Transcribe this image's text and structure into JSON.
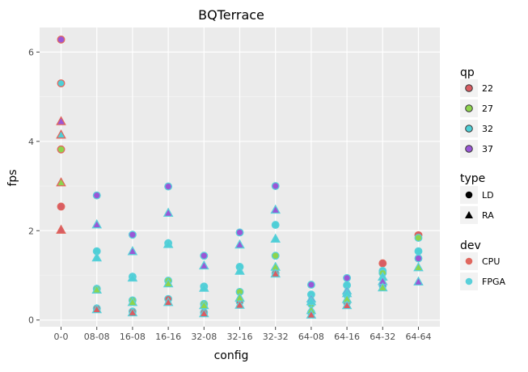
{
  "chart_data": {
    "type": "scatter",
    "title": "BQTerrace",
    "xlabel": "config",
    "ylabel": "fps",
    "categories": [
      "0-0",
      "08-08",
      "16-08",
      "16-16",
      "32-08",
      "32-16",
      "32-32",
      "64-08",
      "64-16",
      "64-32",
      "64-64"
    ],
    "ylim": [
      -0.15,
      6.55
    ],
    "yticks": [
      0,
      2,
      4,
      6
    ],
    "grid": true,
    "legend_position": "right",
    "legend": {
      "qp": {
        "title": "qp",
        "items": [
          {
            "label": "22",
            "color": "#d95d63"
          },
          {
            "label": "27",
            "color": "#8ed44d"
          },
          {
            "label": "32",
            "color": "#4ecfd6"
          },
          {
            "label": "37",
            "color": "#9a57d6"
          }
        ]
      },
      "type": {
        "title": "type",
        "items": [
          {
            "label": "LD",
            "shape": "circle"
          },
          {
            "label": "RA",
            "shape": "triangle"
          }
        ]
      },
      "dev": {
        "title": "dev",
        "items": [
          {
            "label": "CPU",
            "color": "#e0675e"
          },
          {
            "label": "FPGA",
            "color": "#5ad0da"
          }
        ]
      }
    },
    "points": [
      {
        "x": "0-0",
        "y": 6.28,
        "qp": "37",
        "type": "LD",
        "dev": "CPU"
      },
      {
        "x": "0-0",
        "y": 5.3,
        "qp": "32",
        "type": "LD",
        "dev": "CPU"
      },
      {
        "x": "0-0",
        "y": 3.82,
        "qp": "27",
        "type": "LD",
        "dev": "CPU"
      },
      {
        "x": "0-0",
        "y": 2.54,
        "qp": "22",
        "type": "LD",
        "dev": "CPU"
      },
      {
        "x": "0-0",
        "y": 4.45,
        "qp": "37",
        "type": "RA",
        "dev": "CPU"
      },
      {
        "x": "0-0",
        "y": 4.15,
        "qp": "32",
        "type": "RA",
        "dev": "CPU"
      },
      {
        "x": "0-0",
        "y": 3.08,
        "qp": "27",
        "type": "RA",
        "dev": "CPU"
      },
      {
        "x": "0-0",
        "y": 2.02,
        "qp": "22",
        "type": "RA",
        "dev": "CPU"
      },
      {
        "x": "08-08",
        "y": 2.79,
        "qp": "37",
        "type": "LD",
        "dev": "FPGA"
      },
      {
        "x": "08-08",
        "y": 1.54,
        "qp": "32",
        "type": "LD",
        "dev": "FPGA"
      },
      {
        "x": "08-08",
        "y": 0.7,
        "qp": "27",
        "type": "LD",
        "dev": "FPGA"
      },
      {
        "x": "08-08",
        "y": 0.26,
        "qp": "22",
        "type": "LD",
        "dev": "FPGA"
      },
      {
        "x": "08-08",
        "y": 2.14,
        "qp": "37",
        "type": "RA",
        "dev": "FPGA"
      },
      {
        "x": "08-08",
        "y": 1.4,
        "qp": "32",
        "type": "RA",
        "dev": "FPGA"
      },
      {
        "x": "08-08",
        "y": 0.68,
        "qp": "27",
        "type": "RA",
        "dev": "FPGA"
      },
      {
        "x": "08-08",
        "y": 0.24,
        "qp": "22",
        "type": "RA",
        "dev": "FPGA"
      },
      {
        "x": "16-08",
        "y": 1.91,
        "qp": "37",
        "type": "LD",
        "dev": "FPGA"
      },
      {
        "x": "16-08",
        "y": 0.97,
        "qp": "32",
        "type": "LD",
        "dev": "FPGA"
      },
      {
        "x": "16-08",
        "y": 0.44,
        "qp": "27",
        "type": "LD",
        "dev": "FPGA"
      },
      {
        "x": "16-08",
        "y": 0.19,
        "qp": "22",
        "type": "LD",
        "dev": "FPGA"
      },
      {
        "x": "16-08",
        "y": 1.54,
        "qp": "37",
        "type": "RA",
        "dev": "FPGA"
      },
      {
        "x": "16-08",
        "y": 0.95,
        "qp": "32",
        "type": "RA",
        "dev": "FPGA"
      },
      {
        "x": "16-08",
        "y": 0.4,
        "qp": "27",
        "type": "RA",
        "dev": "FPGA"
      },
      {
        "x": "16-08",
        "y": 0.17,
        "qp": "22",
        "type": "RA",
        "dev": "FPGA"
      },
      {
        "x": "16-16",
        "y": 2.99,
        "qp": "37",
        "type": "LD",
        "dev": "FPGA"
      },
      {
        "x": "16-16",
        "y": 1.72,
        "qp": "32",
        "type": "LD",
        "dev": "FPGA"
      },
      {
        "x": "16-16",
        "y": 0.88,
        "qp": "27",
        "type": "LD",
        "dev": "FPGA"
      },
      {
        "x": "16-16",
        "y": 0.47,
        "qp": "22",
        "type": "LD",
        "dev": "FPGA"
      },
      {
        "x": "16-16",
        "y": 2.4,
        "qp": "37",
        "type": "RA",
        "dev": "FPGA"
      },
      {
        "x": "16-16",
        "y": 1.7,
        "qp": "32",
        "type": "RA",
        "dev": "FPGA"
      },
      {
        "x": "16-16",
        "y": 0.82,
        "qp": "27",
        "type": "RA",
        "dev": "FPGA"
      },
      {
        "x": "16-16",
        "y": 0.4,
        "qp": "22",
        "type": "RA",
        "dev": "FPGA"
      },
      {
        "x": "32-08",
        "y": 1.44,
        "qp": "37",
        "type": "LD",
        "dev": "FPGA"
      },
      {
        "x": "32-08",
        "y": 0.75,
        "qp": "32",
        "type": "LD",
        "dev": "FPGA"
      },
      {
        "x": "32-08",
        "y": 0.36,
        "qp": "27",
        "type": "LD",
        "dev": "FPGA"
      },
      {
        "x": "32-08",
        "y": 0.17,
        "qp": "22",
        "type": "LD",
        "dev": "FPGA"
      },
      {
        "x": "32-08",
        "y": 1.22,
        "qp": "37",
        "type": "RA",
        "dev": "FPGA"
      },
      {
        "x": "32-08",
        "y": 0.72,
        "qp": "32",
        "type": "RA",
        "dev": "FPGA"
      },
      {
        "x": "32-08",
        "y": 0.33,
        "qp": "27",
        "type": "RA",
        "dev": "FPGA"
      },
      {
        "x": "32-08",
        "y": 0.15,
        "qp": "22",
        "type": "RA",
        "dev": "FPGA"
      },
      {
        "x": "32-16",
        "y": 1.96,
        "qp": "37",
        "type": "LD",
        "dev": "FPGA"
      },
      {
        "x": "32-16",
        "y": 1.19,
        "qp": "32",
        "type": "LD",
        "dev": "FPGA"
      },
      {
        "x": "32-16",
        "y": 0.63,
        "qp": "27",
        "type": "LD",
        "dev": "FPGA"
      },
      {
        "x": "32-16",
        "y": 0.41,
        "qp": "22",
        "type": "LD",
        "dev": "FPGA"
      },
      {
        "x": "32-16",
        "y": 1.69,
        "qp": "37",
        "type": "RA",
        "dev": "FPGA"
      },
      {
        "x": "32-16",
        "y": 1.1,
        "qp": "32",
        "type": "RA",
        "dev": "FPGA"
      },
      {
        "x": "32-16",
        "y": 0.5,
        "qp": "27",
        "type": "RA",
        "dev": "FPGA"
      },
      {
        "x": "32-16",
        "y": 0.34,
        "qp": "22",
        "type": "RA",
        "dev": "FPGA"
      },
      {
        "x": "32-32",
        "y": 3.0,
        "qp": "37",
        "type": "LD",
        "dev": "FPGA"
      },
      {
        "x": "32-32",
        "y": 2.13,
        "qp": "32",
        "type": "LD",
        "dev": "FPGA"
      },
      {
        "x": "32-32",
        "y": 1.44,
        "qp": "27",
        "type": "LD",
        "dev": "FPGA"
      },
      {
        "x": "32-32",
        "y": 1.05,
        "qp": "22",
        "type": "LD",
        "dev": "FPGA"
      },
      {
        "x": "32-32",
        "y": 2.47,
        "qp": "37",
        "type": "RA",
        "dev": "FPGA"
      },
      {
        "x": "32-32",
        "y": 1.82,
        "qp": "32",
        "type": "RA",
        "dev": "FPGA"
      },
      {
        "x": "32-32",
        "y": 1.19,
        "qp": "27",
        "type": "RA",
        "dev": "FPGA"
      },
      {
        "x": "32-32",
        "y": 1.04,
        "qp": "22",
        "type": "RA",
        "dev": "FPGA"
      },
      {
        "x": "64-08",
        "y": 0.79,
        "qp": "37",
        "type": "LD",
        "dev": "FPGA"
      },
      {
        "x": "64-08",
        "y": 0.57,
        "qp": "32",
        "type": "LD",
        "dev": "FPGA"
      },
      {
        "x": "64-08",
        "y": 0.36,
        "qp": "27",
        "type": "LD",
        "dev": "FPGA"
      },
      {
        "x": "64-08",
        "y": 0.17,
        "qp": "22",
        "type": "LD",
        "dev": "FPGA"
      },
      {
        "x": "64-08",
        "y": 0.48,
        "qp": "37",
        "type": "RA",
        "dev": "FPGA"
      },
      {
        "x": "64-08",
        "y": 0.42,
        "qp": "32",
        "type": "RA",
        "dev": "FPGA"
      },
      {
        "x": "64-08",
        "y": 0.22,
        "qp": "27",
        "type": "RA",
        "dev": "FPGA"
      },
      {
        "x": "64-08",
        "y": 0.12,
        "qp": "22",
        "type": "RA",
        "dev": "FPGA"
      },
      {
        "x": "64-16",
        "y": 0.94,
        "qp": "37",
        "type": "LD",
        "dev": "FPGA"
      },
      {
        "x": "64-16",
        "y": 0.78,
        "qp": "32",
        "type": "LD",
        "dev": "FPGA"
      },
      {
        "x": "64-16",
        "y": 0.56,
        "qp": "27",
        "type": "LD",
        "dev": "FPGA"
      },
      {
        "x": "64-16",
        "y": 0.39,
        "qp": "22",
        "type": "LD",
        "dev": "FPGA"
      },
      {
        "x": "64-16",
        "y": 0.66,
        "qp": "37",
        "type": "RA",
        "dev": "FPGA"
      },
      {
        "x": "64-16",
        "y": 0.6,
        "qp": "32",
        "type": "RA",
        "dev": "FPGA"
      },
      {
        "x": "64-16",
        "y": 0.47,
        "qp": "27",
        "type": "RA",
        "dev": "FPGA"
      },
      {
        "x": "64-16",
        "y": 0.33,
        "qp": "22",
        "type": "RA",
        "dev": "FPGA"
      },
      {
        "x": "64-32",
        "y": 1.27,
        "qp": "22",
        "type": "LD",
        "dev": "CPU"
      },
      {
        "x": "64-32",
        "y": 1.1,
        "qp": "32",
        "type": "LD",
        "dev": "FPGA"
      },
      {
        "x": "64-32",
        "y": 1.05,
        "qp": "27",
        "type": "LD",
        "dev": "FPGA"
      },
      {
        "x": "64-32",
        "y": 0.77,
        "qp": "37",
        "type": "LD",
        "dev": "FPGA"
      },
      {
        "x": "64-32",
        "y": 0.97,
        "qp": "32",
        "type": "RA",
        "dev": "FPGA"
      },
      {
        "x": "64-32",
        "y": 0.87,
        "qp": "37",
        "type": "RA",
        "dev": "FPGA"
      },
      {
        "x": "64-32",
        "y": 0.73,
        "qp": "27",
        "type": "RA",
        "dev": "FPGA"
      },
      {
        "x": "64-64",
        "y": 1.9,
        "qp": "22",
        "type": "LD",
        "dev": "CPU"
      },
      {
        "x": "64-64",
        "y": 1.84,
        "qp": "27",
        "type": "LD",
        "dev": "FPGA"
      },
      {
        "x": "64-64",
        "y": 1.54,
        "qp": "32",
        "type": "LD",
        "dev": "FPGA"
      },
      {
        "x": "64-64",
        "y": 1.38,
        "qp": "37",
        "type": "LD",
        "dev": "FPGA"
      },
      {
        "x": "64-64",
        "y": 1.18,
        "qp": "27",
        "type": "RA",
        "dev": "FPGA"
      },
      {
        "x": "64-64",
        "y": 0.86,
        "qp": "37",
        "type": "RA",
        "dev": "FPGA"
      }
    ]
  }
}
